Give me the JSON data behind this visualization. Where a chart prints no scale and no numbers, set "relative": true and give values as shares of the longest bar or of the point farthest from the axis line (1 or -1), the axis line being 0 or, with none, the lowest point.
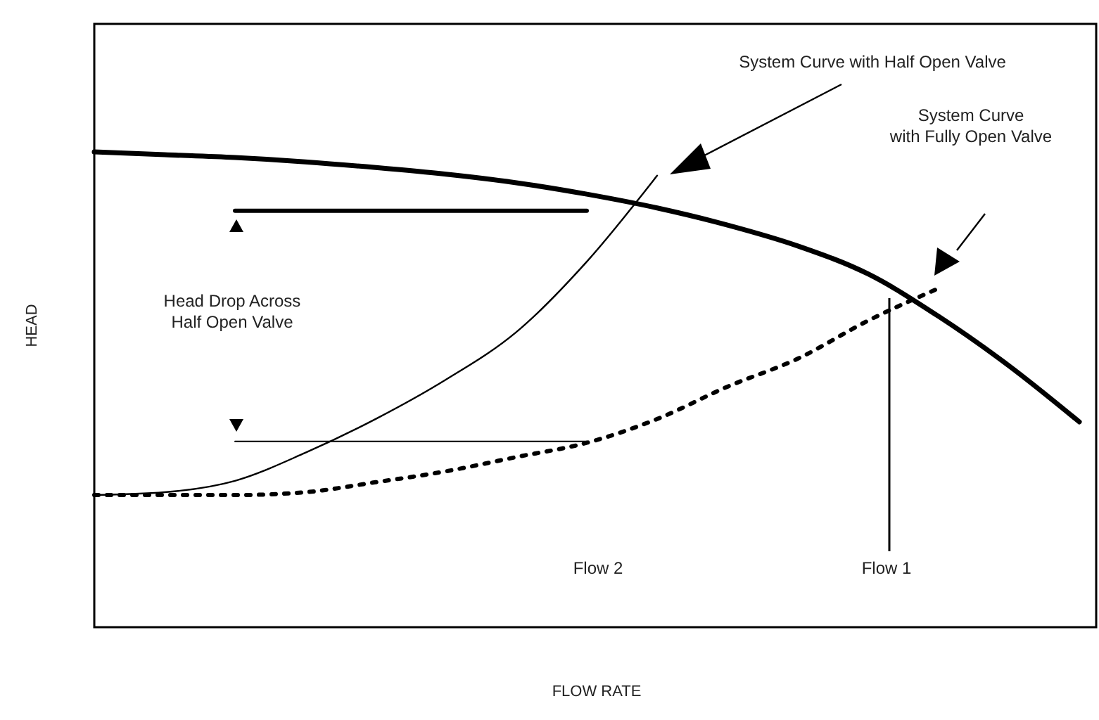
{
  "chart_data": {
    "type": "line",
    "relative": true,
    "xlabel": "FLOW RATE",
    "ylabel": "HEAD",
    "categories": [
      null,
      null,
      null,
      null,
      null,
      null,
      null,
      null,
      null,
      null,
      null,
      null,
      null,
      null,
      null
    ],
    "series": [
      {
        "color": "#000000",
        "line_style": "solid",
        "values": [
          1,
          0.994,
          0.988,
          0.979,
          0.967,
          0.953,
          0.935,
          0.911,
          0.882,
          0.846,
          0.802,
          0.743,
          0.654,
          0.55,
          0.432
        ]
      },
      {
        "color": "#000000",
        "line_style": "solid",
        "values": [
          0.278,
          0.284,
          0.308,
          0.367,
          0.438,
          0.521,
          0.621,
          0.769,
          0.95,
          null,
          null,
          null,
          null,
          null,
          null
        ]
      },
      {
        "color": "#000000",
        "line_style": "dotted",
        "values": [
          0.278,
          0.278,
          0.278,
          0.284,
          0.305,
          0.328,
          0.358,
          0.388,
          0.438,
          0.506,
          0.565,
          0.645,
          0.713,
          null,
          null
        ]
      },
      {
        "color": "#000000",
        "line_style": "solid",
        "values": [
          null,
          null,
          0.876,
          0.876,
          0.876,
          0.876,
          0.876,
          0.876,
          null,
          null,
          null,
          null,
          null,
          null,
          null
        ]
      },
      {
        "color": "#000000",
        "line_style": "solid",
        "values": [
          null,
          null,
          0.391,
          0.391,
          0.391,
          0.391,
          0.391,
          0.391,
          null,
          null,
          null,
          null,
          null,
          null,
          null
        ]
      }
    ],
    "annotations": [
      "System Curve with Half Open Valve",
      "System Curve\nwith Fully Open Valve",
      "Head Drop Across\nHalf Open Valve",
      "Flow 2",
      "Flow 1"
    ]
  }
}
